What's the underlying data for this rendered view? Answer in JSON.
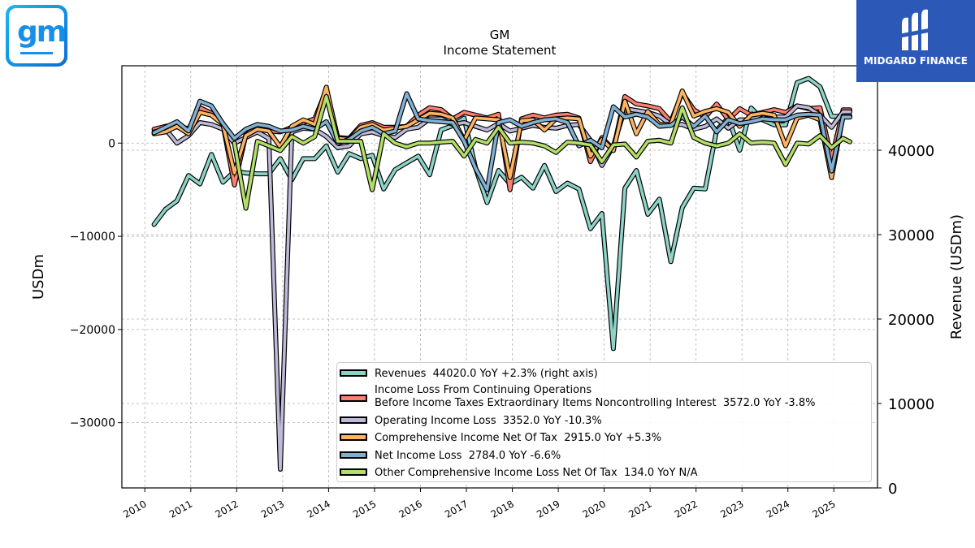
{
  "chart_data": {
    "type": "line",
    "title": "GM",
    "subtitle": "Income Statement",
    "ylabel": "USDm",
    "ylabel_right": "Revenue (USDm)",
    "ylim": [
      -37000,
      8300
    ],
    "ylim_right": [
      0,
      50000
    ],
    "y_ticks": [
      0,
      -10000,
      -20000,
      -30000
    ],
    "y_tick_labels": [
      "0",
      "−10000",
      "−20000",
      "−30000"
    ],
    "y_right_ticks": [
      0,
      10000,
      20000,
      30000,
      40000
    ],
    "y_right_tick_labels": [
      "0",
      "10000",
      "20000",
      "30000",
      "40000"
    ],
    "x_ticks": [
      2010,
      2011,
      2012,
      2013,
      2014,
      2015,
      2016,
      2017,
      2018,
      2019,
      2020,
      2021,
      2022,
      2023,
      2024,
      2025
    ],
    "x_tick_labels": [
      "2010",
      "2011",
      "2012",
      "2013",
      "2014",
      "2015",
      "2016",
      "2017",
      "2018",
      "2019",
      "2020",
      "2021",
      "2022",
      "2023",
      "2024",
      "2025"
    ],
    "xlim": [
      2009.5,
      2025.95
    ],
    "grid": true,
    "legend_position": "lower-right",
    "x": [
      2010.2,
      2010.45,
      2010.7,
      2010.95,
      2011.2,
      2011.45,
      2011.7,
      2011.95,
      2012.2,
      2012.45,
      2012.7,
      2012.95,
      2013.2,
      2013.45,
      2013.7,
      2013.95,
      2014.2,
      2014.45,
      2014.7,
      2014.95,
      2015.2,
      2015.45,
      2015.7,
      2015.95,
      2016.2,
      2016.45,
      2016.7,
      2016.95,
      2017.2,
      2017.45,
      2017.7,
      2017.95,
      2018.2,
      2018.45,
      2018.7,
      2018.95,
      2019.2,
      2019.45,
      2019.7,
      2019.95,
      2020.2,
      2020.45,
      2020.7,
      2020.95,
      2021.2,
      2021.45,
      2021.7,
      2021.95,
      2022.2,
      2022.45,
      2022.7,
      2022.95,
      2023.2,
      2023.45,
      2023.7,
      2023.95,
      2024.2,
      2024.45,
      2024.7,
      2024.95,
      2025.2,
      2025.35
    ],
    "series": [
      {
        "name": "Revenues",
        "legend": "Revenues  44020.0 YoY +2.3% (right axis)",
        "axis": "right",
        "color": "#8dd3c7",
        "values": [
          31200,
          33000,
          34000,
          37000,
          36000,
          39500,
          36200,
          37500,
          37300,
          37200,
          37200,
          39000,
          36500,
          39000,
          39000,
          40500,
          37400,
          39600,
          39000,
          39400,
          35400,
          37700,
          38500,
          39300,
          37100,
          42400,
          42900,
          43800,
          37900,
          33800,
          37600,
          36000,
          36800,
          35500,
          38200,
          35100,
          36100,
          35400,
          30700,
          32500,
          16500,
          35500,
          37600,
          32400,
          34200,
          26800,
          33200,
          35500,
          35400,
          42400,
          43800,
          40000,
          45000,
          43600,
          43000,
          43000,
          48000,
          48500,
          47500,
          44020,
          44020,
          44020
        ]
      },
      {
        "name": "Income Loss From Continuing Operations Before Income Taxes Extraordinary Items Noncontrolling Interest",
        "legend": "Income Loss From Continuing Operations\nBefore Income Taxes Extraordinary Items Noncontrolling Interest  3572.0 YoY -3.8%",
        "axis": "left",
        "color": "#fb8072",
        "values": [
          1500,
          1800,
          2000,
          1500,
          3800,
          3200,
          2000,
          -4500,
          900,
          1800,
          1300,
          1200,
          1700,
          2200,
          2600,
          5700,
          600,
          500,
          1900,
          2200,
          1700,
          1700,
          1800,
          3000,
          3800,
          3600,
          2600,
          3300,
          3000,
          2700,
          3100,
          -5000,
          2600,
          3000,
          2700,
          3000,
          3100,
          2700,
          -2000,
          600,
          -700,
          5000,
          4200,
          4000,
          3700,
          2300,
          5400,
          3600,
          2800,
          4200,
          2500,
          3700,
          3000,
          3300,
          3600,
          3300,
          4000,
          3700,
          3800,
          -1700,
          3572,
          3572
        ]
      },
      {
        "name": "Operating Income Loss",
        "legend": "Operating Income Loss  3352.0 YoY -10.3%",
        "axis": "left",
        "color": "#bebada",
        "values": [
          1200,
          1500,
          0,
          800,
          2200,
          2000,
          1500,
          0,
          600,
          1200,
          500,
          -35000,
          1200,
          1600,
          1500,
          700,
          -500,
          -300,
          1000,
          1200,
          800,
          600,
          1500,
          1700,
          2600,
          2600,
          2000,
          2200,
          1800,
          1400,
          2100,
          1300,
          1600,
          1900,
          1700,
          1600,
          1900,
          2000,
          300,
          -2400,
          -300,
          3700,
          3500,
          3300,
          2900,
          2000,
          2000,
          1500,
          1800,
          2600,
          1600,
          2500,
          2500,
          3200,
          2800,
          2800,
          4000,
          3800,
          3000,
          1700,
          3352,
          3352
        ]
      },
      {
        "name": "Comprehensive Income Net Of Tax",
        "legend": "Comprehensive Income Net Of Tax  2915.0 YoY +5.3%",
        "axis": "left",
        "color": "#fdb462",
        "values": [
          1000,
          1200,
          1800,
          1000,
          3300,
          3000,
          2000,
          -3200,
          800,
          1500,
          1300,
          -400,
          1800,
          2500,
          2000,
          6000,
          500,
          400,
          1700,
          2000,
          1400,
          1600,
          1800,
          2500,
          3200,
          3100,
          2700,
          300,
          2700,
          2600,
          2500,
          -3700,
          2400,
          2500,
          1400,
          2600,
          2700,
          2600,
          -1400,
          400,
          -800,
          4500,
          1000,
          3400,
          2000,
          2000,
          5600,
          2900,
          3400,
          3700,
          3300,
          1800,
          3000,
          3200,
          3000,
          -300,
          2700,
          3000,
          2500,
          -3700,
          2915,
          2915
        ]
      },
      {
        "name": "Net Income Loss",
        "legend": "Net Income Loss  2784.0 YoY -6.6%",
        "axis": "left",
        "color": "#80b1d3",
        "values": [
          1100,
          1700,
          2300,
          1300,
          4500,
          4000,
          2100,
          500,
          1500,
          2000,
          1800,
          1300,
          1400,
          1800,
          1500,
          2300,
          0,
          400,
          1300,
          1700,
          1000,
          1300,
          5300,
          2600,
          2400,
          2300,
          2200,
          200,
          -2700,
          -5000,
          2200,
          2500,
          1800,
          2200,
          2500,
          2600,
          2200,
          -300,
          300,
          -500,
          3900,
          2800,
          3100,
          2800,
          1800,
          1900,
          2800,
          1800,
          2900,
          1200,
          2500,
          2100,
          2300,
          2600,
          2500,
          2500,
          3000,
          3100,
          3000,
          -3000,
          2784,
          2784
        ]
      },
      {
        "name": "Other Comprehensive Income Loss Net Of Tax",
        "legend": "Other Comprehensive Income Loss Net Of Tax  134.0 YoY N/A",
        "axis": "left",
        "color": "#b3de69",
        "values": [
          null,
          null,
          null,
          null,
          null,
          null,
          null,
          0,
          -7000,
          200,
          -300,
          -800,
          700,
          0,
          700,
          5000,
          200,
          200,
          200,
          -5000,
          1000,
          0,
          -400,
          0,
          0,
          100,
          200,
          -1400,
          400,
          0,
          1700,
          0,
          100,
          0,
          -300,
          -1000,
          100,
          0,
          -200,
          -2000,
          -200,
          -100,
          -1500,
          200,
          300,
          0,
          3800,
          600,
          0,
          -300,
          0,
          1000,
          0,
          100,
          0,
          -2300,
          0,
          -100,
          800,
          -500,
          500,
          134
        ]
      }
    ]
  },
  "branding": {
    "left_logo_text": "gm",
    "right_logo_text": "MIDGARD FINANCE"
  }
}
